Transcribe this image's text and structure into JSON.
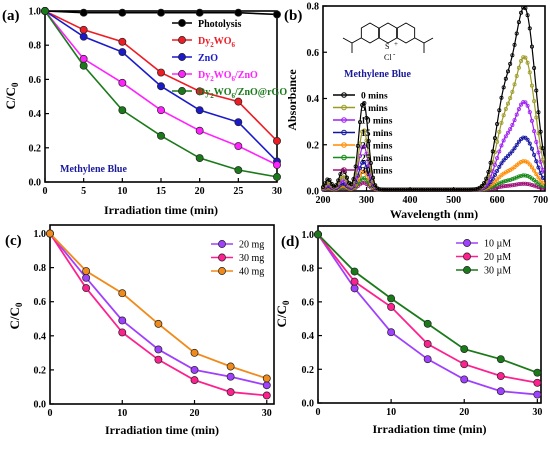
{
  "figure": {
    "panels": [
      {
        "key": "a",
        "label": "(a)"
      },
      {
        "key": "b",
        "label": "(b)"
      },
      {
        "key": "c",
        "label": "(c)"
      },
      {
        "key": "d",
        "label": "(d)"
      }
    ]
  },
  "chart_data": [
    {
      "panel": "(a)",
      "type": "line",
      "xlabel": "Irradiation time (min)",
      "ylabel": "C/C0",
      "annotation": "Methylene Blue",
      "xlim": [
        0,
        30
      ],
      "ylim": [
        0,
        1.0
      ],
      "xticks": [
        0,
        5,
        10,
        15,
        20,
        25,
        30
      ],
      "yticks": [
        0.0,
        0.2,
        0.4,
        0.6,
        0.8,
        1.0
      ],
      "ytick_labels": [
        "0.0",
        "0.2",
        "0.4",
        "0.6",
        "0.8",
        "1.0"
      ],
      "legend_position": "top-right",
      "x": [
        0,
        5,
        10,
        15,
        20,
        25,
        30
      ],
      "series": [
        {
          "name": "Photolysis",
          "color": "#000000",
          "values": [
            1.0,
            0.99,
            0.99,
            0.99,
            0.99,
            0.99,
            0.98
          ]
        },
        {
          "name": "Dy2WO6",
          "color": "#ee1c25",
          "values": [
            1.0,
            0.89,
            0.82,
            0.64,
            0.53,
            0.47,
            0.24
          ]
        },
        {
          "name": "ZnO",
          "color": "#1a1acc",
          "values": [
            1.0,
            0.85,
            0.76,
            0.56,
            0.42,
            0.35,
            0.12
          ]
        },
        {
          "name": "Dy2WO6/ZnO",
          "color": "#ff22ff",
          "values": [
            1.0,
            0.72,
            0.58,
            0.42,
            0.3,
            0.21,
            0.1
          ]
        },
        {
          "name": "Dy2WO6/ZnO@rGO",
          "color": "#1a7a1a",
          "values": [
            1.0,
            0.68,
            0.42,
            0.27,
            0.14,
            0.07,
            0.03
          ]
        }
      ]
    },
    {
      "panel": "(b)",
      "type": "line",
      "xlabel": "Wavelength (nm)",
      "ylabel": "Absorbance",
      "annotation": "Methylene Blue",
      "structure_labels": [
        "S",
        "+",
        "Cl",
        "-"
      ],
      "xlim": [
        200,
        710
      ],
      "ylim": [
        0,
        0.8
      ],
      "xticks": [
        200,
        300,
        400,
        500,
        600,
        700
      ],
      "yticks": [
        0.0,
        0.2,
        0.4,
        0.6,
        0.8
      ],
      "ytick_labels": [
        "0.0",
        "0.2",
        "0.4",
        "0.6",
        "0.8"
      ],
      "legend_position": "center-left",
      "peaks": {
        "uv_nm": 293,
        "shoulder_nm": 615,
        "main_nm": 664
      },
      "series": [
        {
          "name": "0 mins",
          "color": "#000000",
          "peak_uv": 0.38,
          "peak_main": 0.77
        },
        {
          "name": "5 mins",
          "color": "#9c9a26",
          "peak_uv": 0.26,
          "peak_main": 0.56
        },
        {
          "name": "10 mins",
          "color": "#a020f0",
          "peak_uv": 0.19,
          "peak_main": 0.37
        },
        {
          "name": "15 mins",
          "color": "#1414a0",
          "peak_uv": 0.12,
          "peak_main": 0.22
        },
        {
          "name": "20 mins",
          "color": "#ff8c00",
          "peak_uv": 0.08,
          "peak_main": 0.12
        },
        {
          "name": "25 mins",
          "color": "#1a8a1a",
          "peak_uv": 0.05,
          "peak_main": 0.06
        },
        {
          "name": "30 mins",
          "color": "#a0147a",
          "peak_uv": 0.03,
          "peak_main": 0.025
        }
      ]
    },
    {
      "panel": "(c)",
      "type": "line",
      "xlabel": "Irradiation time (min)",
      "ylabel": "C/C0",
      "xlim": [
        0,
        31
      ],
      "ylim": [
        0,
        1.05
      ],
      "xticks": [
        0,
        10,
        20,
        30
      ],
      "yticks": [
        0.0,
        0.2,
        0.4,
        0.6,
        0.8,
        1.0
      ],
      "ytick_labels": [
        "0.0",
        "0.2",
        "0.4",
        "0.6",
        "0.8",
        "1.0"
      ],
      "legend_position": "top-right",
      "x": [
        0,
        5,
        10,
        15,
        20,
        25,
        30
      ],
      "series": [
        {
          "name": "20 mg",
          "color": "#a040ff",
          "values": [
            1.0,
            0.74,
            0.49,
            0.32,
            0.2,
            0.16,
            0.11
          ]
        },
        {
          "name": "30 mg",
          "color": "#ff2090",
          "values": [
            1.0,
            0.68,
            0.42,
            0.26,
            0.14,
            0.07,
            0.05
          ]
        },
        {
          "name": "40 mg",
          "color": "#f08a1a",
          "values": [
            1.0,
            0.78,
            0.65,
            0.47,
            0.3,
            0.22,
            0.15
          ]
        }
      ]
    },
    {
      "panel": "(d)",
      "type": "line",
      "xlabel": "Irradiation time (min)",
      "ylabel": "C/C0",
      "xlim": [
        0,
        30.5
      ],
      "ylim": [
        0,
        1.05
      ],
      "xticks": [
        0,
        10,
        20,
        30
      ],
      "yticks": [
        0.0,
        0.2,
        0.4,
        0.6,
        0.8,
        1.0
      ],
      "ytick_labels": [
        "0.0",
        "0.2",
        "0.4",
        "0.6",
        "0.8",
        "1.0"
      ],
      "legend_position": "top-right",
      "x": [
        0,
        5,
        10,
        15,
        20,
        25,
        30
      ],
      "series": [
        {
          "name": "10 µM",
          "color": "#a040ff",
          "values": [
            1.0,
            0.68,
            0.42,
            0.26,
            0.14,
            0.07,
            0.05
          ]
        },
        {
          "name": "20 µM",
          "color": "#ff2090",
          "values": [
            1.0,
            0.72,
            0.57,
            0.35,
            0.23,
            0.16,
            0.12
          ]
        },
        {
          "name": "30 µM",
          "color": "#1a7a1a",
          "values": [
            1.0,
            0.78,
            0.62,
            0.47,
            0.32,
            0.26,
            0.18
          ]
        }
      ]
    }
  ]
}
